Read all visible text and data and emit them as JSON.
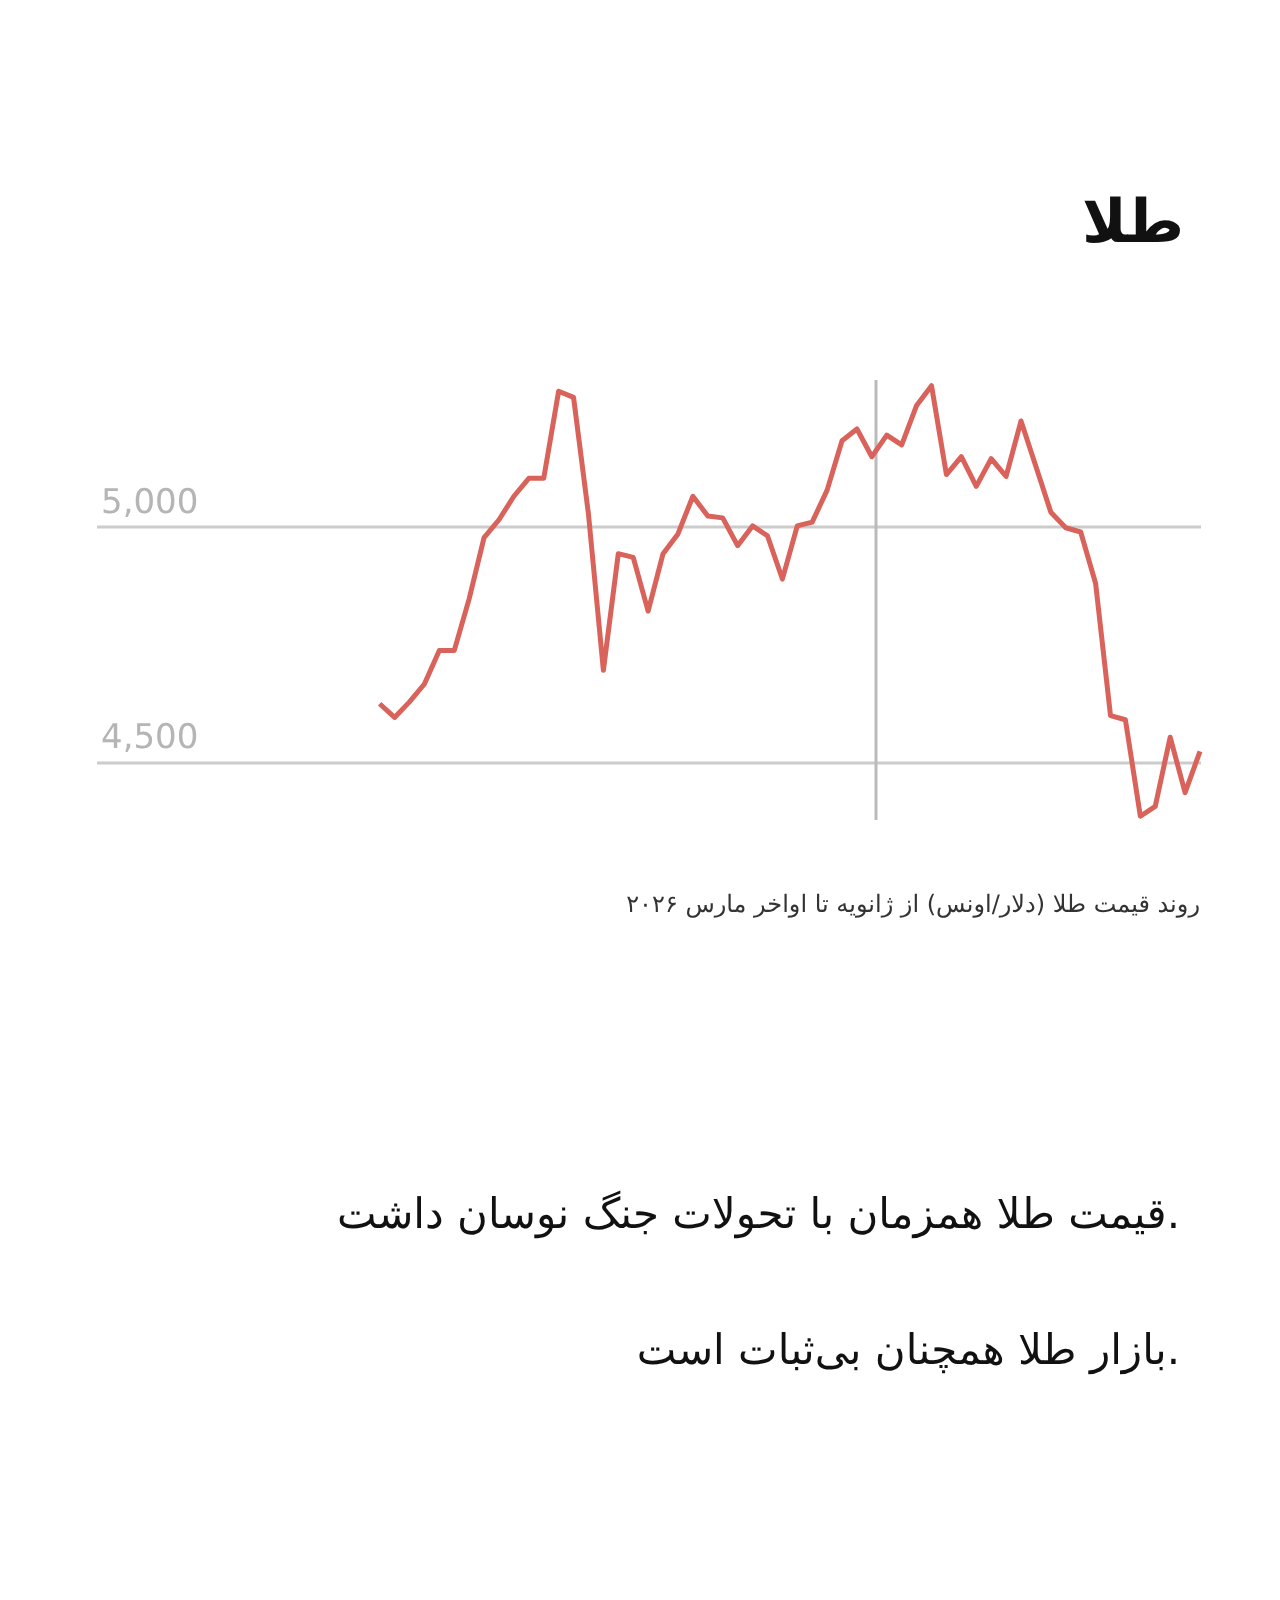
{
  "chart_data": {
    "type": "line",
    "title": "طلا",
    "categories": [
      null,
      null,
      null,
      null,
      null,
      null,
      null,
      null,
      null,
      null,
      null,
      null,
      null,
      null,
      null,
      null,
      null,
      null,
      null,
      null,
      null,
      null,
      null,
      null,
      null,
      null,
      null,
      null,
      null,
      null,
      null,
      null,
      null,
      null,
      null,
      null,
      null,
      null,
      null,
      null,
      null,
      null,
      null,
      null,
      null,
      null,
      null,
      null,
      null,
      null,
      null,
      null,
      null,
      null,
      null,
      null
    ],
    "series": [
      {
        "color": "#d9625a",
        "values": [
          4622,
          4593,
          4626,
          4664,
          4735,
          4735,
          4845,
          4975,
          5013,
          5063,
          5101,
          5101,
          5286,
          5273,
          5025,
          4693,
          4941,
          4933,
          4819,
          4941,
          4983,
          5063,
          5021,
          5017,
          4958,
          5000,
          4979,
          4887,
          5000,
          5008,
          5076,
          5181,
          5206,
          5147,
          5193,
          5172,
          5256,
          5298,
          5109,
          5147,
          5084,
          5143,
          5105,
          5223,
          5126,
          5029,
          4996,
          4987,
          4878,
          4597,
          4588,
          4383,
          4404,
          4551,
          4433,
          4521
        ]
      }
    ],
    "ylim": [
      4375,
      5310
    ],
    "yticks": [
      {
        "value": 4500,
        "label": "4,500"
      },
      {
        "value": 5000,
        "label": "5,000"
      }
    ],
    "grid": "y",
    "marker": "none",
    "line_style": "solid",
    "tick_labels": "y",
    "annotations": [
      "روند قیمت طلا (دلار/اونس) از ژانویه تا اواخر مارس ۲۰۲۶",
      "قیمت طلا همزمان با تحولات جنگ نوسان داشت.",
      "بازار طلا همچنان بی‌ثبات است."
    ]
  }
}
